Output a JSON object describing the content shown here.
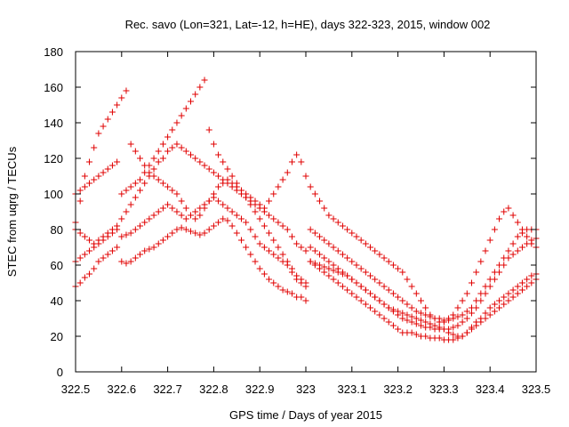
{
  "page": {
    "background": "#ffffff"
  },
  "chart_data": {
    "type": "scatter",
    "title": "Rec. savo (Lon=321, Lat=-12, h=HE), days 322-323, 2015, window 002",
    "xlabel": "GPS time / Days of year 2015",
    "ylabel": "STEC from uqrg / TECUs",
    "xlim": [
      322.5,
      323.5
    ],
    "ylim": [
      0,
      180
    ],
    "xticks": [
      322.5,
      322.6,
      322.7,
      322.8,
      322.9,
      323,
      323.1,
      323.2,
      323.3,
      323.4,
      323.5
    ],
    "xtick_labels": [
      "322.5",
      "322.6",
      "322.7",
      "322.8",
      "322.9",
      "323",
      "323.1",
      "323.2",
      "323.3",
      "323.4",
      "323.5"
    ],
    "yticks": [
      0,
      20,
      40,
      60,
      80,
      100,
      120,
      140,
      160,
      180
    ],
    "ytick_labels": [
      "0",
      "20",
      "40",
      "60",
      "80",
      "100",
      "120",
      "140",
      "160",
      "180"
    ],
    "grid": false,
    "legend": "none",
    "marker": "+",
    "color": "#e00000",
    "series": [
      {
        "x": [
          322.5,
          322.51,
          322.52,
          322.53,
          322.54,
          322.55,
          322.56,
          322.57,
          322.58,
          322.59,
          322.6,
          322.61,
          322.62,
          322.63,
          322.64,
          322.65,
          322.66,
          322.67,
          322.68,
          322.69,
          322.7,
          322.71,
          322.72,
          322.73,
          322.74,
          322.75,
          322.76,
          322.77,
          322.78,
          322.79,
          322.8,
          322.81,
          322.82,
          322.83,
          322.84,
          322.85,
          322.86,
          322.87,
          322.88,
          322.89,
          322.9,
          322.91,
          322.92,
          322.93,
          322.94,
          322.95,
          322.96,
          322.97,
          322.98,
          322.99,
          323.0,
          323.01,
          323.02,
          323.03,
          323.04,
          323.05,
          323.06,
          323.07,
          323.08,
          323.09,
          323.1,
          323.11,
          323.12,
          323.13,
          323.14,
          323.15,
          323.16,
          323.17,
          323.18,
          323.19,
          323.2,
          323.21,
          323.22,
          323.23,
          323.24,
          323.25,
          323.26,
          323.27,
          323.28,
          323.29,
          323.3,
          323.31,
          323.32,
          323.33,
          323.34,
          323.35,
          323.36,
          323.37,
          323.38,
          323.39,
          323.4,
          323.41,
          323.42,
          323.43,
          323.44,
          323.45,
          323.46,
          323.47,
          323.48,
          323.49,
          323.5
        ],
        "y": [
          48,
          50,
          53,
          55,
          58,
          62,
          64,
          66,
          68,
          70,
          62,
          61,
          62,
          64,
          66,
          68,
          69,
          70,
          72,
          74,
          76,
          78,
          80,
          81,
          80,
          79,
          78,
          77,
          78,
          80,
          82,
          84,
          86,
          85,
          82,
          78,
          74,
          70,
          66,
          62,
          58,
          55,
          52,
          50,
          48,
          46,
          45,
          44,
          42,
          42,
          40,
          62,
          60,
          58,
          56,
          54,
          52,
          50,
          48,
          46,
          44,
          42,
          40,
          38,
          36,
          34,
          32,
          30,
          28,
          26,
          24,
          22,
          22,
          22,
          21,
          20,
          20,
          19,
          19,
          19,
          18,
          18,
          18,
          19,
          20,
          22,
          25,
          28,
          30,
          33,
          36,
          38,
          40,
          42,
          44,
          46,
          48,
          50,
          52,
          54,
          55
        ]
      },
      {
        "x": [
          322.5,
          322.51,
          322.52,
          322.53,
          322.54,
          322.55,
          322.56,
          322.57,
          322.58,
          322.59,
          322.6,
          322.61,
          322.62,
          322.63,
          322.64,
          322.65,
          322.66,
          322.67,
          322.68,
          322.69,
          322.7,
          322.71,
          322.72,
          322.73,
          322.74,
          322.75,
          322.76,
          322.77,
          322.78,
          322.79,
          322.8,
          322.81,
          322.82,
          322.83,
          322.84,
          322.85,
          322.86,
          322.87,
          322.88,
          322.89,
          322.9,
          322.91,
          322.92,
          322.93,
          322.94,
          322.95,
          322.96,
          322.97,
          322.98,
          322.99,
          323.0,
          323.01,
          323.02,
          323.03,
          323.04,
          323.05,
          323.06,
          323.07,
          323.08,
          323.09,
          323.1,
          323.11,
          323.12,
          323.13,
          323.14,
          323.15,
          323.16,
          323.17,
          323.18,
          323.19,
          323.2,
          323.21,
          323.22,
          323.23,
          323.24,
          323.25,
          323.26,
          323.27,
          323.28,
          323.29,
          323.3,
          323.31,
          323.32,
          323.33,
          323.34,
          323.35,
          323.36,
          323.37,
          323.38,
          323.39,
          323.4,
          323.41,
          323.42,
          323.43,
          323.44,
          323.45,
          323.46,
          323.47,
          323.48,
          323.49,
          323.5
        ],
        "y": [
          62,
          64,
          66,
          68,
          70,
          72,
          74,
          76,
          78,
          80,
          76,
          77,
          78,
          80,
          82,
          84,
          86,
          88,
          90,
          92,
          94,
          92,
          90,
          88,
          86,
          88,
          90,
          92,
          94,
          96,
          98,
          96,
          94,
          92,
          90,
          88,
          86,
          84,
          80,
          76,
          72,
          70,
          68,
          66,
          64,
          62,
          60,
          56,
          52,
          50,
          48,
          70,
          68,
          66,
          64,
          62,
          60,
          58,
          56,
          54,
          52,
          50,
          48,
          46,
          44,
          42,
          40,
          38,
          36,
          34,
          32,
          30,
          29,
          28,
          27,
          26,
          25,
          25,
          24,
          24,
          24,
          24,
          25,
          26,
          28,
          30,
          33,
          36,
          40,
          44,
          48,
          52,
          56,
          60,
          64,
          66,
          68,
          70,
          72,
          74,
          75
        ]
      },
      {
        "x": [
          322.5,
          322.51,
          322.52,
          322.53,
          322.54,
          322.55,
          322.56,
          322.57,
          322.58,
          322.59,
          322.6,
          322.61,
          322.62,
          322.63,
          322.64,
          322.65,
          322.66,
          322.67,
          322.68,
          322.69,
          322.7,
          322.71,
          322.72,
          322.73,
          322.74,
          322.75,
          322.76,
          322.77,
          322.78,
          322.79,
          322.8,
          322.81,
          322.82,
          322.83,
          322.84,
          322.85,
          322.86,
          322.87,
          322.88,
          322.89,
          322.9,
          322.91,
          322.92,
          322.93,
          322.94,
          322.95,
          322.96,
          322.97,
          322.98,
          322.99,
          323.0,
          323.01,
          323.02,
          323.03,
          323.04,
          323.05,
          323.06,
          323.07,
          323.08,
          323.09,
          323.1,
          323.11,
          323.12,
          323.13,
          323.14,
          323.15,
          323.16,
          323.17,
          323.18,
          323.19,
          323.2,
          323.21,
          323.22,
          323.23,
          323.24,
          323.25,
          323.26,
          323.27,
          323.28,
          323.29,
          323.3,
          323.31,
          323.32,
          323.33,
          323.34,
          323.35,
          323.36,
          323.37,
          323.38,
          323.39,
          323.4,
          323.41,
          323.42,
          323.43,
          323.44,
          323.45,
          323.46,
          323.47,
          323.48,
          323.49,
          323.5
        ],
        "y": [
          80,
          78,
          76,
          74,
          72,
          74,
          76,
          78,
          80,
          82,
          86,
          90,
          94,
          98,
          102,
          106,
          110,
          114,
          118,
          120,
          124,
          126,
          128,
          126,
          124,
          122,
          120,
          118,
          116,
          114,
          112,
          110,
          108,
          106,
          104,
          102,
          100,
          98,
          96,
          94,
          92,
          90,
          88,
          86,
          84,
          82,
          80,
          76,
          72,
          70,
          68,
          80,
          78,
          76,
          74,
          72,
          70,
          68,
          66,
          64,
          62,
          60,
          58,
          56,
          54,
          52,
          50,
          48,
          46,
          44,
          42,
          40,
          38,
          36,
          34,
          33,
          32,
          31,
          30,
          30,
          29,
          29,
          30,
          31,
          32,
          34,
          36,
          40,
          44,
          48,
          52,
          56,
          60,
          64,
          68,
          72,
          76,
          78,
          80,
          80,
          80
        ]
      },
      {
        "x": [
          322.5,
          322.51,
          322.52,
          322.53,
          322.54,
          322.55,
          322.56,
          322.57,
          322.58,
          322.59,
          322.6,
          322.61,
          322.62,
          322.63,
          322.64,
          322.65,
          322.66,
          322.67,
          322.68,
          322.69,
          322.7,
          322.71,
          322.72,
          322.73,
          322.74,
          322.75,
          322.76,
          322.77,
          322.78,
          322.79,
          322.8,
          322.81,
          322.82,
          322.83,
          322.84,
          322.85,
          322.86,
          322.87,
          322.88,
          322.89,
          322.9,
          322.91,
          322.92,
          322.93,
          322.94,
          322.95,
          322.96,
          322.97,
          322.98,
          322.99,
          323.0,
          323.01,
          323.02,
          323.03,
          323.04,
          323.05,
          323.06,
          323.07,
          323.08,
          323.09,
          323.1,
          323.11,
          323.12,
          323.13,
          323.14,
          323.15,
          323.16,
          323.17,
          323.18,
          323.19,
          323.2,
          323.21,
          323.22,
          323.23,
          323.24,
          323.25,
          323.26,
          323.27,
          323.28,
          323.29,
          323.3,
          323.31,
          323.32,
          323.33,
          323.34,
          323.35,
          323.36,
          323.37,
          323.38,
          323.39,
          323.4,
          323.41,
          323.42,
          323.43,
          323.44,
          323.45,
          323.46,
          323.47,
          323.48,
          323.49,
          323.5
        ],
        "y": [
          100,
          102,
          104,
          106,
          108,
          110,
          112,
          114,
          116,
          118,
          100,
          102,
          104,
          106,
          108,
          112,
          116,
          120,
          124,
          128,
          132,
          136,
          140,
          144,
          148,
          152,
          156,
          160,
          164,
          136,
          128,
          122,
          118,
          114,
          110,
          106,
          102,
          98,
          94,
          90,
          86,
          82,
          78,
          74,
          70,
          66,
          62,
          58,
          54,
          52,
          50,
          62,
          61,
          60,
          59,
          58,
          57,
          56,
          55,
          54,
          52,
          50,
          48,
          46,
          44,
          42,
          40,
          38,
          36,
          35,
          34,
          33,
          32,
          31,
          30,
          29,
          28,
          27,
          26,
          25,
          24,
          22,
          21,
          20,
          20,
          22,
          24,
          26,
          28,
          30,
          32,
          34,
          36,
          38,
          40,
          42,
          44,
          46,
          48,
          50,
          52
        ]
      },
      {
        "x": [
          322.5,
          322.51,
          322.52,
          322.53,
          322.54,
          322.55,
          322.56,
          322.57,
          322.58,
          322.59,
          322.6,
          322.61,
          322.62,
          322.63,
          322.64,
          322.65,
          322.66,
          322.67,
          322.68,
          322.69,
          322.7,
          322.71,
          322.72,
          322.73,
          322.74,
          322.75,
          322.76,
          322.77,
          322.78,
          322.79,
          322.8,
          322.81,
          322.82,
          322.83,
          322.84,
          322.85,
          322.86,
          322.87,
          322.88,
          322.89,
          322.9,
          322.91,
          322.92,
          322.93,
          322.94,
          322.95,
          322.96,
          322.97,
          322.98,
          322.99,
          323.0,
          323.01,
          323.02,
          323.03,
          323.04,
          323.05,
          323.06,
          323.07,
          323.08,
          323.09,
          323.1,
          323.11,
          323.12,
          323.13,
          323.14,
          323.15,
          323.16,
          323.17,
          323.18,
          323.19,
          323.2,
          323.21,
          323.22,
          323.23,
          323.24,
          323.25,
          323.26,
          323.27,
          323.28,
          323.29,
          323.3,
          323.31,
          323.32,
          323.33,
          323.34,
          323.35,
          323.36,
          323.37,
          323.38,
          323.39,
          323.4,
          323.41,
          323.42,
          323.43,
          323.44,
          323.45,
          323.46,
          323.47,
          323.48,
          323.49,
          323.5
        ],
        "y": [
          84,
          96,
          110,
          118,
          126,
          134,
          138,
          142,
          146,
          150,
          154,
          158,
          128,
          124,
          120,
          116,
          112,
          110,
          108,
          106,
          104,
          102,
          100,
          96,
          92,
          88,
          86,
          88,
          92,
          96,
          100,
          104,
          106,
          108,
          106,
          104,
          102,
          100,
          98,
          96,
          94,
          92,
          96,
          100,
          104,
          108,
          112,
          118,
          122,
          118,
          110,
          104,
          100,
          96,
          92,
          88,
          86,
          84,
          82,
          80,
          78,
          76,
          74,
          72,
          70,
          68,
          66,
          64,
          62,
          60,
          58,
          56,
          52,
          48,
          44,
          40,
          36,
          32,
          30,
          28,
          28,
          30,
          32,
          36,
          40,
          44,
          50,
          56,
          62,
          68,
          74,
          80,
          86,
          90,
          92,
          88,
          84,
          80,
          76,
          72,
          70
        ]
      }
    ]
  }
}
